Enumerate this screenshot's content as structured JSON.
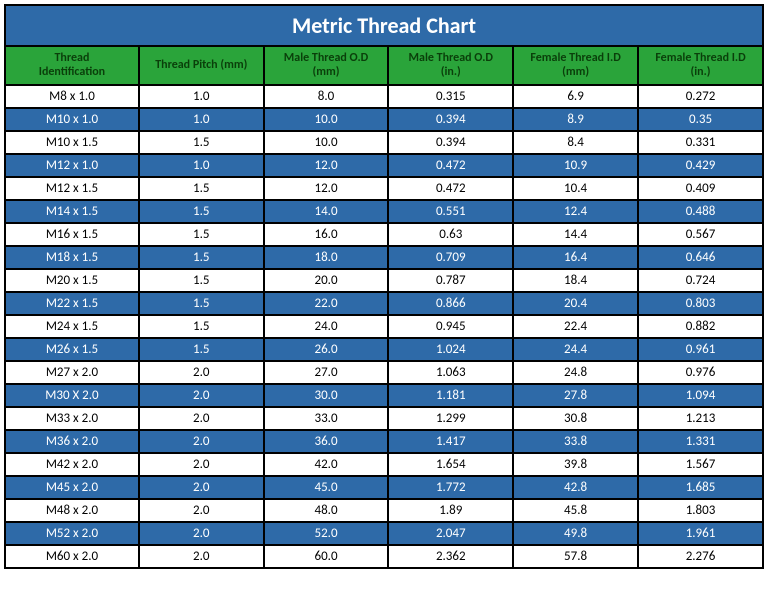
{
  "title": "Metric Thread Chart",
  "colors": {
    "title_bg": "#2e6aa8",
    "title_fg": "#ffffff",
    "header_bg": "#2aa43a",
    "header_fg": "#0a3f0a",
    "row_white_bg": "#ffffff",
    "row_white_fg": "#000000",
    "row_blue_bg": "#2e6aa8",
    "row_blue_fg": "#ffffff",
    "border": "#000000"
  },
  "columns": [
    {
      "line1": "Thread",
      "line2": "Identification"
    },
    {
      "line1": "Thread Pitch (mm)",
      "line2": ""
    },
    {
      "line1": "Male Thread O.D",
      "line2": "(mm)"
    },
    {
      "line1": "Male Thread O.D",
      "line2": "(in.)"
    },
    {
      "line1": "Female Thread I.D",
      "line2": "(mm)"
    },
    {
      "line1": "Female Thread I.D",
      "line2": "(in.)"
    }
  ],
  "rows": [
    [
      "M8 x 1.0",
      "1.0",
      "8.0",
      "0.315",
      "6.9",
      "0.272"
    ],
    [
      "M10 x 1.0",
      "1.0",
      "10.0",
      "0.394",
      "8.9",
      "0.35"
    ],
    [
      "M10 x 1.5",
      "1.5",
      "10.0",
      "0.394",
      "8.4",
      "0.331"
    ],
    [
      "M12 x 1.0",
      "1.0",
      "12.0",
      "0.472",
      "10.9",
      "0.429"
    ],
    [
      "M12 x 1.5",
      "1.5",
      "12.0",
      "0.472",
      "10.4",
      "0.409"
    ],
    [
      "M14 x 1.5",
      "1.5",
      "14.0",
      "0.551",
      "12.4",
      "0.488"
    ],
    [
      "M16 x 1.5",
      "1.5",
      "16.0",
      "0.63",
      "14.4",
      "0.567"
    ],
    [
      "M18 x 1.5",
      "1.5",
      "18.0",
      "0.709",
      "16.4",
      "0.646"
    ],
    [
      "M20 x 1.5",
      "1.5",
      "20.0",
      "0.787",
      "18.4",
      "0.724"
    ],
    [
      "M22 x 1.5",
      "1.5",
      "22.0",
      "0.866",
      "20.4",
      "0.803"
    ],
    [
      "M24 x 1.5",
      "1.5",
      "24.0",
      "0.945",
      "22.4",
      "0.882"
    ],
    [
      "M26 x 1.5",
      "1.5",
      "26.0",
      "1.024",
      "24.4",
      "0.961"
    ],
    [
      "M27 x 2.0",
      "2.0",
      "27.0",
      "1.063",
      "24.8",
      "0.976"
    ],
    [
      "M30 X 2.0",
      "2.0",
      "30.0",
      "1.181",
      "27.8",
      "1.094"
    ],
    [
      "M33 x 2.0",
      "2.0",
      "33.0",
      "1.299",
      "30.8",
      "1.213"
    ],
    [
      "M36 x 2.0",
      "2.0",
      "36.0",
      "1.417",
      "33.8",
      "1.331"
    ],
    [
      "M42 x 2.0",
      "2.0",
      "42.0",
      "1.654",
      "39.8",
      "1.567"
    ],
    [
      "M45 x 2.0",
      "2.0",
      "45.0",
      "1.772",
      "42.8",
      "1.685"
    ],
    [
      "M48 x 2.0",
      "2.0",
      "48.0",
      "1.89",
      "45.8",
      "1.803"
    ],
    [
      "M52 x 2.0",
      "2.0",
      "52.0",
      "2.047",
      "49.8",
      "1.961"
    ],
    [
      "M60 x 2.0",
      "2.0",
      "60.0",
      "2.362",
      "57.8",
      "2.276"
    ]
  ]
}
